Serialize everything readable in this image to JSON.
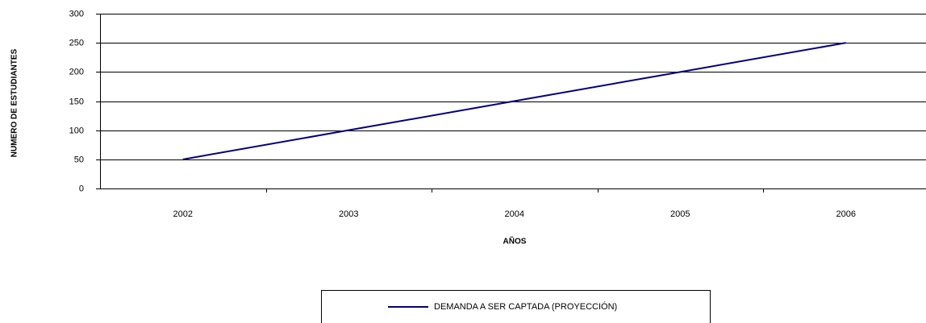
{
  "chart_data": {
    "type": "line",
    "categories": [
      "2002",
      "2003",
      "2004",
      "2005",
      "2006"
    ],
    "series": [
      {
        "name": "DEMANDA A SER CAPTADA (PROYECCIÓN)",
        "color": "#000080",
        "values": [
          50,
          100,
          150,
          200,
          250
        ]
      }
    ],
    "ylim": [
      0,
      300
    ],
    "yticks": [
      0,
      50,
      100,
      150,
      200,
      250,
      300
    ],
    "grid": true,
    "y_label": "NUMERO DE ESTUDIANTES",
    "x_label": "AÑOS",
    "legend": "bottom"
  }
}
